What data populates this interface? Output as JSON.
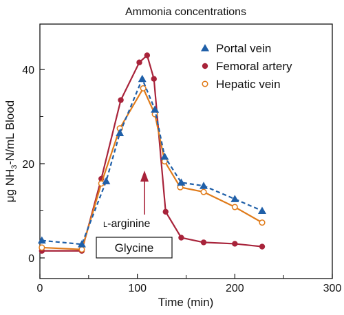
{
  "chart_data": {
    "type": "line",
    "title": "Ammonia concentrations",
    "xlabel": "Time (min)",
    "ylabel": "μg NH3-N/mL Blood",
    "ylabel_parts": {
      "pre": "μg NH",
      "sub": "3",
      "post": "-N/mL Blood"
    },
    "xlim": [
      0,
      300
    ],
    "ylim": [
      0,
      50
    ],
    "xticks": [
      0,
      100,
      200,
      300
    ],
    "yticks": [
      0,
      20,
      40
    ],
    "ytick_labels": [
      "0",
      "20",
      "40"
    ],
    "xtick_labels": [
      "0",
      "100",
      "200",
      "300"
    ],
    "legend_position": "top-right",
    "grid": false,
    "series": [
      {
        "name": "Portal vein",
        "color": "#1f5fa8",
        "line": "dashed",
        "marker": "triangle",
        "x": [
          2,
          43,
          68,
          82,
          105,
          118,
          128,
          145,
          168,
          200,
          228
        ],
        "y": [
          3.7,
          2.9,
          16.3,
          26.5,
          38.0,
          31.5,
          21.5,
          16.0,
          15.3,
          12.5,
          10.0
        ]
      },
      {
        "name": "Femoral artery",
        "color": "#a8233a",
        "line": "solid",
        "marker": "circle",
        "x": [
          2,
          43,
          63,
          83,
          102,
          110,
          117,
          129,
          145,
          168,
          200,
          228
        ],
        "y": [
          1.5,
          1.5,
          16.8,
          33.5,
          41.5,
          43.0,
          38.0,
          9.8,
          4.3,
          3.3,
          3.0,
          2.4
        ]
      },
      {
        "name": "Hepatic vein",
        "color": "#e07b1a",
        "line": "solid",
        "marker": "open-circle",
        "x": [
          2,
          43,
          63,
          82,
          106,
          118,
          128,
          144,
          168,
          200,
          228
        ],
        "y": [
          2.2,
          1.8,
          15.8,
          27.5,
          36.0,
          30.5,
          20.5,
          15.0,
          14.0,
          10.8,
          7.5
        ]
      }
    ],
    "annotations": {
      "arrow_label": "L-arginine",
      "arrow_label_smallcap": "L",
      "arrow_label_rest": "-arginine",
      "arrow_color": "#a8233a",
      "arrow_x": 108,
      "box_label": "Glycine"
    }
  }
}
